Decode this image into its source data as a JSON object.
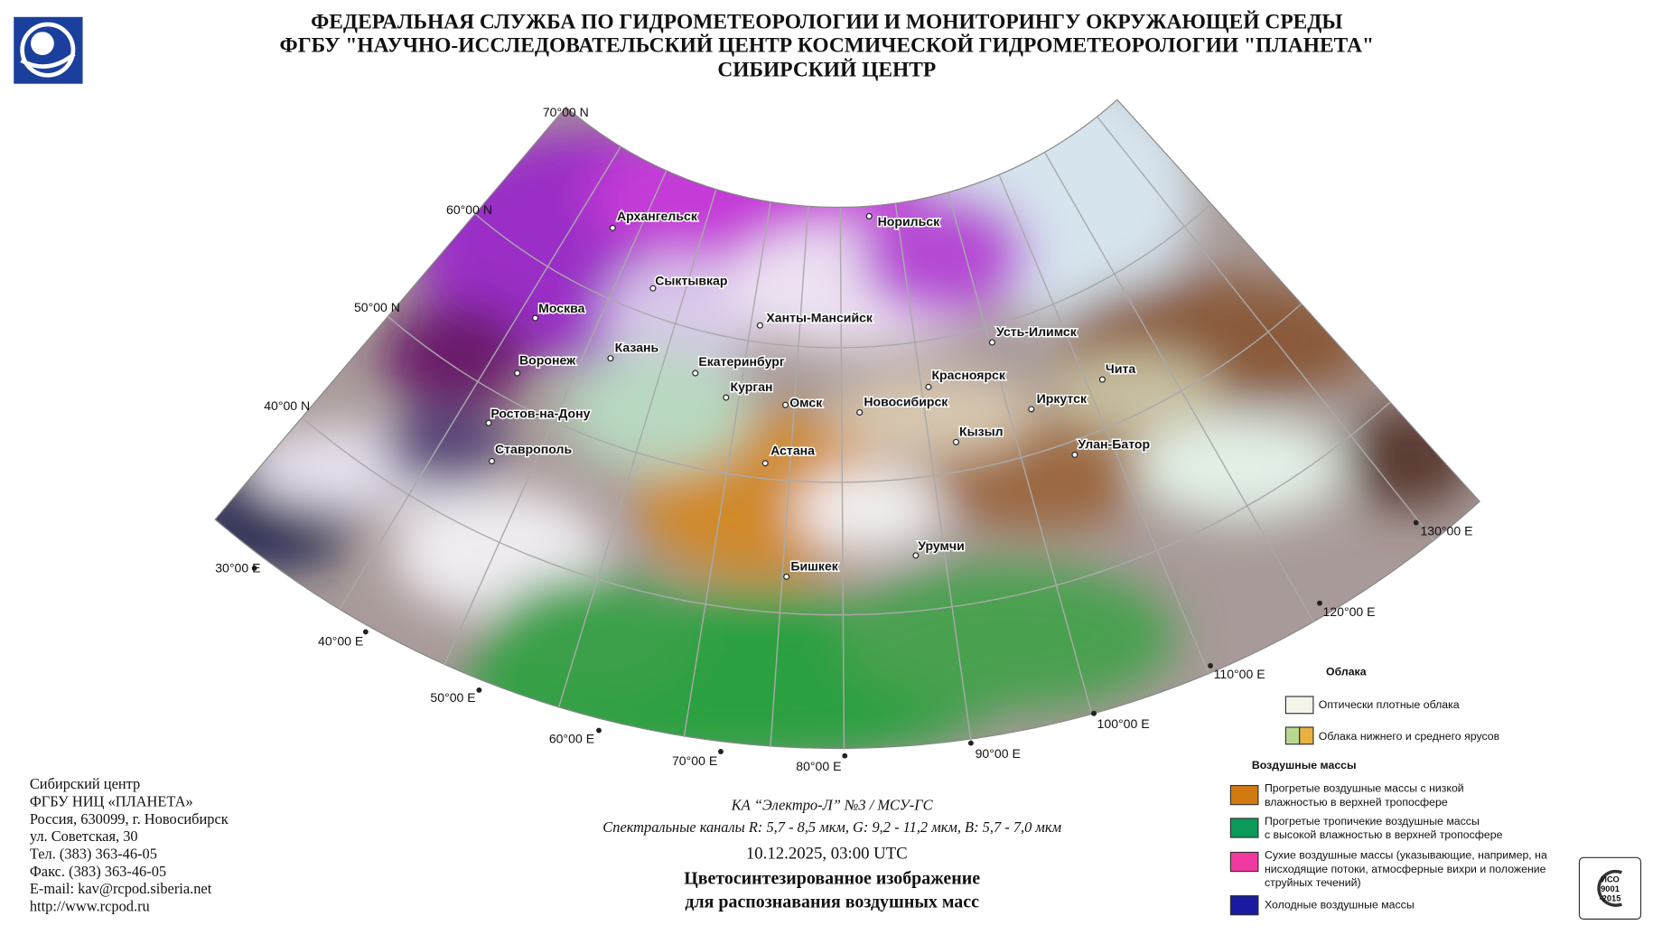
{
  "header": {
    "lines": [
      "ФЕДЕРАЛЬНАЯ СЛУЖБА ПО ГИДРОМЕТЕОРОЛОГИИ И МОНИТОРИНГУ ОКРУЖАЮЩЕЙ СРЕДЫ",
      "ФГБУ \"НАУЧНО-ИССЛЕДОВАТЕЛЬСКИЙ ЦЕНТР КОСМИЧЕСКОЙ ГИДРОМЕТЕОРОЛОГИИ \"ПЛАНЕТА\"",
      "СИБИРСКИЙ ЦЕНТР"
    ]
  },
  "map": {
    "latitude_labels": [
      "70°00 N",
      "60°00 N",
      "50°00 N",
      "40°00 N"
    ],
    "longitude_labels": [
      "30°00 E",
      "40°00 E",
      "50°00 E",
      "60°00 E",
      "70°00 E",
      "80°00 E",
      "90°00 E",
      "100°00 E",
      "110°00 E",
      "120°00 E",
      "130°00 E"
    ],
    "cities": [
      "Архангельск",
      "Норильск",
      "Сыктывкар",
      "Москва",
      "Ханты-Мансийск",
      "Усть-Илимск",
      "Казань",
      "Воронеж",
      "Екатеринбург",
      "Красноярск",
      "Чита",
      "Курган",
      "Омск",
      "Новосибирск",
      "Иркутск",
      "Ростов-на-Дону",
      "Кызыл",
      "Улан-Батор",
      "Ставрополь",
      "Астана",
      "Урумчи",
      "Бишкек"
    ]
  },
  "legend": {
    "clouds_title": "Облака",
    "clouds": [
      "Оптически плотные облака",
      "Облака нижнего и среднего ярусов"
    ],
    "air_masses_title": "Воздушные массы",
    "air_masses": [
      [
        "Прогретые воздушные массы с низкой",
        "влажностью в верхней тропосфере"
      ],
      [
        "Прогретые тропичекие воздушные массы",
        "с высокой влажностью в верхней тропосфере"
      ],
      [
        "Сухие воздушные массы (указывающие, например, на",
        "нисходящие потоки, атмосферные вихри и положение",
        "струйных течений)"
      ],
      [
        "Холодные воздушные массы"
      ]
    ]
  },
  "caption": {
    "satellite": "КА “Электро-Л” №3 / МСУ-ГС",
    "channels": "Спектральные каналы R: 5,7 - 8,5 мкм, G: 9,2 - 11,2 мкм, B: 5,7 - 7,0 мкм",
    "datetime": "10.12.2025, 03:00 UTC",
    "title": [
      "Цветосинтезированное изображение",
      "для распознавания воздушных масс"
    ]
  },
  "contacts": [
    "Сибирский центр",
    "ФГБУ НИЦ «ПЛАНЕТА»",
    "Россия, 630099, г. Новосибирск",
    "ул. Советская, 30",
    "Тел. (383) 363-46-05",
    "Факс. (383) 363-46-05",
    "E-mail: kav@rcpod.siberia.net",
    "http://www.rcpod.ru"
  ],
  "certificate": [
    "ИСО",
    "9001",
    "-2015"
  ]
}
